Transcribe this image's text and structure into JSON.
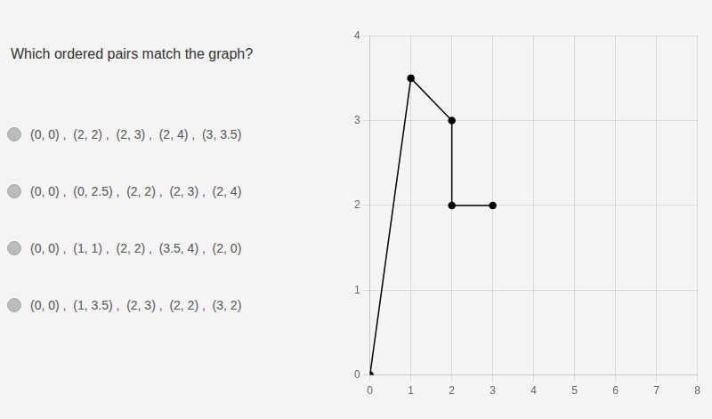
{
  "chart_data": {
    "type": "line",
    "title": "Which ordered pairs match the graph?",
    "annotations": [
      "(0, 0) ,  (2, 2) ,  (2, 3) ,  (2, 4) ,  (3, 3.5)",
      "(0, 0) ,  (0, 2.5) ,  (2, 2) ,  (2, 3) ,  (2, 4)",
      "(0, 0) ,  (1, 1) ,  (2, 2) ,  (3.5, 4) ,  (2, 0)",
      "(0, 0) ,  (1, 3.5) ,  (2, 3) ,  (2, 2) ,  (3, 2)"
    ],
    "x": [
      0,
      1,
      2,
      2,
      3
    ],
    "values": [
      0,
      3.5,
      3,
      2,
      2
    ],
    "color": "#000000",
    "marker": "circle",
    "line_style": "solid",
    "xlim": [
      0,
      8
    ],
    "ylim": [
      0,
      4
    ],
    "xticks": [
      0,
      1,
      2,
      3,
      4,
      5,
      6,
      7,
      8
    ],
    "yticks": [
      0,
      1,
      2,
      3,
      4
    ],
    "grid": true
  }
}
